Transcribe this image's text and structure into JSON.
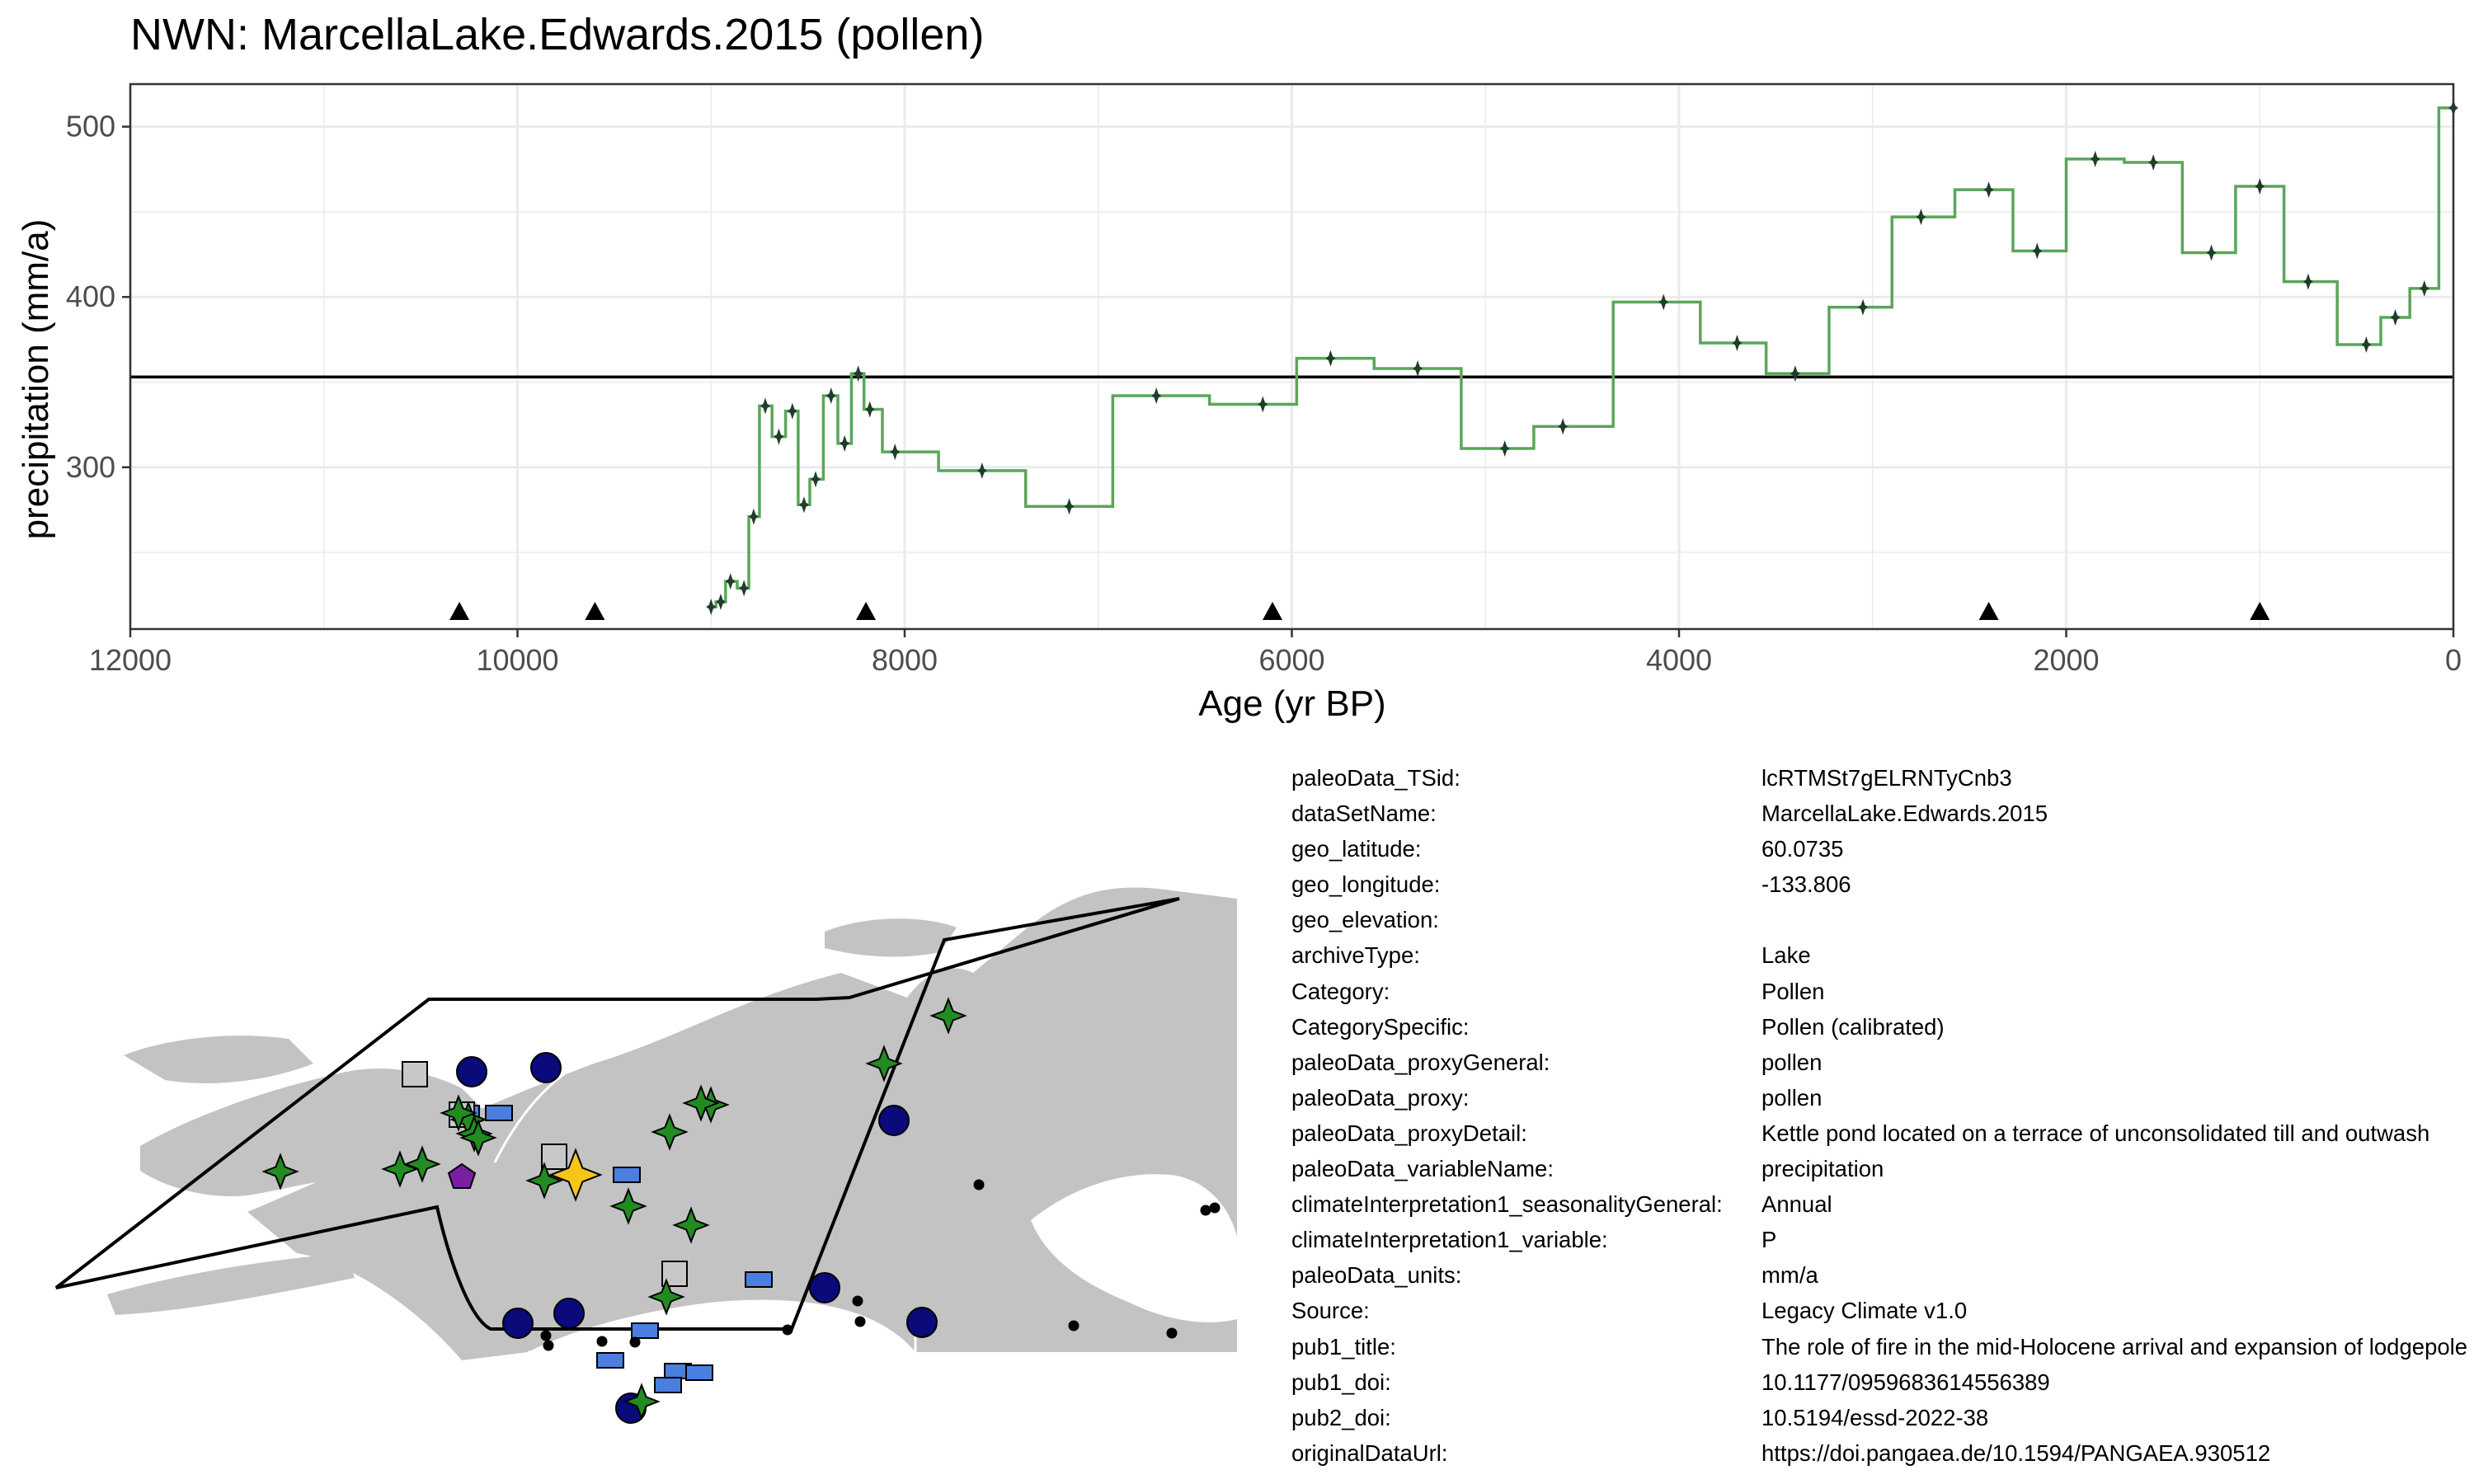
{
  "chart_data": {
    "type": "line",
    "title": "NWN: MarcellaLake.Edwards.2015 (pollen)",
    "xlabel": "Age (yr BP)",
    "ylabel": "precipitation (mm/a)",
    "xlim": [
      12000,
      0
    ],
    "ylim": [
      205,
      525
    ],
    "x_ticks": [
      12000,
      10000,
      8000,
      6000,
      4000,
      2000,
      0
    ],
    "y_ticks": [
      300,
      400,
      500
    ],
    "x_tick_labels": [
      "12000",
      "10000",
      "8000",
      "6000",
      "4000",
      "2000",
      "0"
    ],
    "y_tick_labels": [
      "300",
      "400",
      "500"
    ],
    "x_reversed": true,
    "grid": true,
    "reference_line_y": 353,
    "series": [
      {
        "style": "step",
        "color": "#5aa65a",
        "marker_color": "#1f3d2a",
        "points": [
          [
            9000,
            218
          ],
          [
            8950,
            221
          ],
          [
            8900,
            233
          ],
          [
            8830,
            229
          ],
          [
            8780,
            271
          ],
          [
            8720,
            336
          ],
          [
            8650,
            318
          ],
          [
            8580,
            333
          ],
          [
            8520,
            278
          ],
          [
            8460,
            293
          ],
          [
            8380,
            342
          ],
          [
            8310,
            314
          ],
          [
            8240,
            355
          ],
          [
            8180,
            334
          ],
          [
            8050,
            309
          ],
          [
            7600,
            298
          ],
          [
            7150,
            277
          ],
          [
            6700,
            342
          ],
          [
            6150,
            337
          ],
          [
            5800,
            364
          ],
          [
            5350,
            358
          ],
          [
            4900,
            311
          ],
          [
            4600,
            324
          ],
          [
            4080,
            397
          ],
          [
            3700,
            373
          ],
          [
            3400,
            355
          ],
          [
            3050,
            394
          ],
          [
            2750,
            447
          ],
          [
            2400,
            463
          ],
          [
            2150,
            427
          ],
          [
            1850,
            481
          ],
          [
            1550,
            479
          ],
          [
            1250,
            426
          ],
          [
            1000,
            465
          ],
          [
            750,
            409
          ],
          [
            450,
            372
          ],
          [
            300,
            388
          ],
          [
            150,
            405
          ],
          [
            0,
            511
          ]
        ]
      }
    ],
    "age_control_markers": [
      10300,
      9600,
      8200,
      6100,
      2400,
      1000
    ]
  },
  "metadata": [
    {
      "key": "paleoData_TSid:",
      "value": "lcRTMSt7gELRNTyCnb3"
    },
    {
      "key": "dataSetName:",
      "value": "MarcellaLake.Edwards.2015"
    },
    {
      "key": "geo_latitude:",
      "value": "60.0735"
    },
    {
      "key": "geo_longitude:",
      "value": "-133.806"
    },
    {
      "key": "geo_elevation:",
      "value": ""
    },
    {
      "key": "archiveType:",
      "value": "Lake"
    },
    {
      "key": "Category:",
      "value": "Pollen"
    },
    {
      "key": "CategorySpecific:",
      "value": "Pollen (calibrated)"
    },
    {
      "key": "paleoData_proxyGeneral:",
      "value": "pollen"
    },
    {
      "key": "paleoData_proxy:",
      "value": "pollen"
    },
    {
      "key": "paleoData_proxyDetail:",
      "value": "Kettle pond located on a terrace of unconsolidated till and outwash"
    },
    {
      "key": "paleoData_variableName:",
      "value": "precipitation"
    },
    {
      "key": "climateInterpretation1_seasonalityGeneral:",
      "value": "Annual"
    },
    {
      "key": "climateInterpretation1_variable:",
      "value": "P"
    },
    {
      "key": "paleoData_units:",
      "value": "mm/a"
    },
    {
      "key": "Source:",
      "value": "Legacy Climate v1.0"
    },
    {
      "key": "pub1_title:",
      "value": "The role of fire in the mid-Holocene arrival and expansion of lodgepole pine"
    },
    {
      "key": "pub1_doi:",
      "value": "10.1177/0959683614556389"
    },
    {
      "key": "pub2_doi:",
      "value": "10.5194/essd-2022-38"
    },
    {
      "key": "originalDataUrl:",
      "value": "https://doi.pangaea.de/10.1594/PANGAEA.930512"
    }
  ],
  "map": {
    "colors": {
      "land": "#c3c3c3",
      "region_outline": "#000000",
      "star_green": "#228b22",
      "star_selected": "#f5c518",
      "circle_navy": "#0a0a7a",
      "rect_blue": "#4a7fe0",
      "square_gray": "#c8c8c8",
      "pentagon_purple": "#7a1fa2",
      "dot_black": "#000000"
    }
  }
}
